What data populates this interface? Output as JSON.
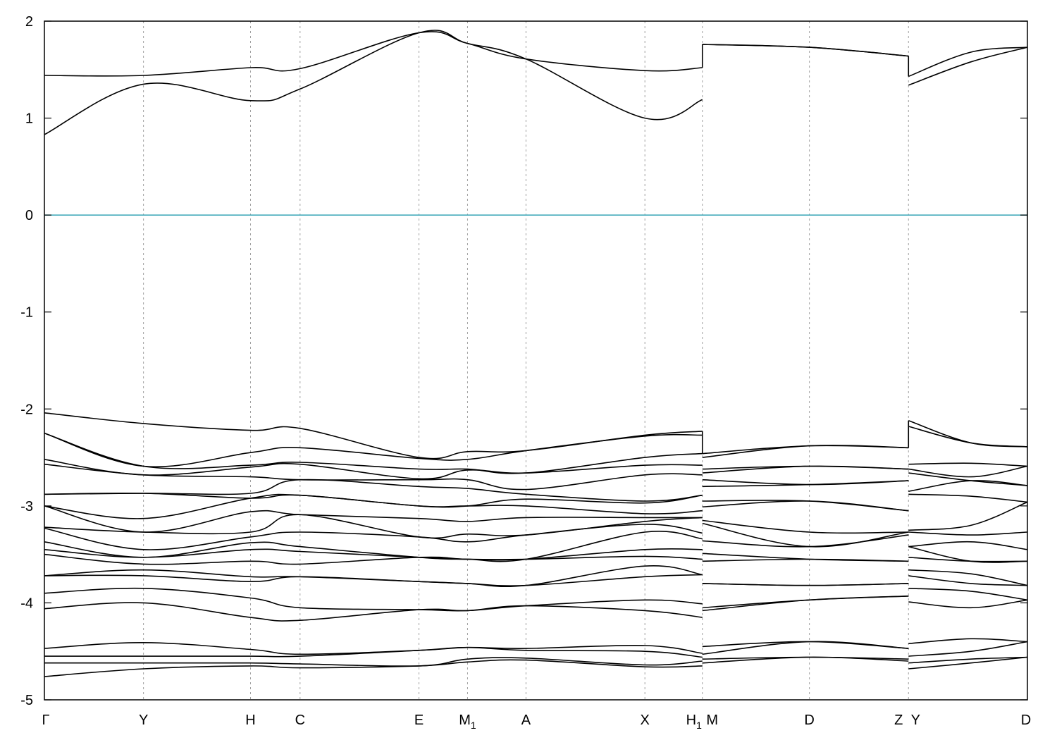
{
  "chart_data": {
    "type": "line",
    "title": "",
    "xlabel": "",
    "ylabel": "",
    "ylim": [
      -5,
      2
    ],
    "yticks": [
      -5,
      -4,
      -3,
      -2,
      -1,
      0,
      1,
      2
    ],
    "grid": "vertical dashed lines at high-symmetry points",
    "reference_line": {
      "y": 0,
      "color": "#44aabb"
    },
    "kpoints": [
      {
        "label": "Γ",
        "sub": "",
        "x": 0
      },
      {
        "label": "Y",
        "sub": "",
        "x": 1
      },
      {
        "label": "H",
        "sub": "",
        "x": 2.08
      },
      {
        "label": "C",
        "sub": "",
        "x": 2.58
      },
      {
        "label": "E",
        "sub": "",
        "x": 3.78
      },
      {
        "label": "M",
        "sub": "1",
        "x": 4.27
      },
      {
        "label": "A",
        "sub": "",
        "x": 4.86
      },
      {
        "label": "X",
        "sub": "",
        "x": 6.06
      },
      {
        "label": "H",
        "sub": "1",
        "x": 6.64
      },
      {
        "label": "M",
        "sub": "",
        "x": 6.64
      },
      {
        "label": "D",
        "sub": "",
        "x": 7.72
      },
      {
        "label": "Z",
        "sub": "",
        "x": 8.72
      },
      {
        "label": "Y",
        "sub": "",
        "x": 8.72
      },
      {
        "label": "D",
        "sub": "",
        "x": 9.92
      }
    ],
    "segments": [
      {
        "x": [
          0,
          1,
          2.08,
          2.58,
          3.78,
          4.27,
          4.86,
          6.06,
          6.64
        ],
        "bands": [
          [
            0.83,
            1.35,
            1.18,
            1.3,
            1.88,
            1.77,
            1.61,
            1.0,
            1.19
          ],
          [
            1.44,
            1.44,
            1.52,
            1.51,
            1.88,
            1.77,
            1.61,
            1.49,
            1.52
          ],
          [
            -2.04,
            -2.15,
            -2.22,
            -2.2,
            -2.5,
            -2.44,
            -2.43,
            -2.27,
            -2.23
          ],
          [
            -2.25,
            -2.59,
            -2.45,
            -2.4,
            -2.51,
            -2.52,
            -2.43,
            -2.28,
            -2.27
          ],
          [
            -2.25,
            -2.59,
            -2.58,
            -2.55,
            -2.62,
            -2.62,
            -2.66,
            -2.5,
            -2.46
          ],
          [
            -2.52,
            -2.68,
            -2.6,
            -2.57,
            -2.72,
            -2.63,
            -2.66,
            -2.58,
            -2.58
          ],
          [
            -2.57,
            -2.68,
            -2.7,
            -2.73,
            -2.73,
            -2.73,
            -2.83,
            -2.68,
            -2.68
          ],
          [
            -2.88,
            -2.87,
            -2.87,
            -2.73,
            -2.8,
            -2.82,
            -2.88,
            -2.95,
            -2.89
          ],
          [
            -2.88,
            -2.87,
            -2.92,
            -2.89,
            -3.0,
            -3.0,
            -2.93,
            -2.97,
            -2.89
          ],
          [
            -3.0,
            -3.13,
            -2.92,
            -2.89,
            -3.0,
            -3.0,
            -3.0,
            -3.08,
            -3.05
          ],
          [
            -3.0,
            -3.27,
            -3.06,
            -3.09,
            -3.13,
            -3.16,
            -3.12,
            -3.12,
            -3.12
          ],
          [
            -3.22,
            -3.27,
            -3.27,
            -3.09,
            -3.32,
            -3.29,
            -3.3,
            -3.16,
            -3.12
          ],
          [
            -3.23,
            -3.45,
            -3.32,
            -3.27,
            -3.32,
            -3.37,
            -3.3,
            -3.19,
            -3.28
          ],
          [
            -3.37,
            -3.53,
            -3.38,
            -3.42,
            -3.53,
            -3.55,
            -3.55,
            -3.27,
            -3.34
          ],
          [
            -3.45,
            -3.53,
            -3.45,
            -3.47,
            -3.53,
            -3.55,
            -3.55,
            -3.45,
            -3.45
          ],
          [
            -3.5,
            -3.6,
            -3.57,
            -3.6,
            -3.53,
            -3.55,
            -3.55,
            -3.52,
            -3.55
          ],
          [
            -3.72,
            -3.66,
            -3.73,
            -3.73,
            -3.78,
            -3.8,
            -3.82,
            -3.62,
            -3.71
          ],
          [
            -3.72,
            -3.72,
            -3.78,
            -3.73,
            -3.78,
            -3.8,
            -3.82,
            -3.73,
            -3.71
          ],
          [
            -3.9,
            -3.85,
            -3.95,
            -4.05,
            -4.07,
            -4.08,
            -4.03,
            -3.97,
            -4.01
          ],
          [
            -4.06,
            -4.0,
            -4.15,
            -4.18,
            -4.07,
            -4.08,
            -4.03,
            -4.08,
            -4.15
          ],
          [
            -4.47,
            -4.41,
            -4.48,
            -4.53,
            -4.49,
            -4.46,
            -4.47,
            -4.44,
            -4.52
          ],
          [
            -4.55,
            -4.55,
            -4.55,
            -4.55,
            -4.49,
            -4.46,
            -4.49,
            -4.5,
            -4.56
          ],
          [
            -4.62,
            -4.62,
            -4.62,
            -4.63,
            -4.65,
            -4.58,
            -4.57,
            -4.64,
            -4.6
          ],
          [
            -4.76,
            -4.68,
            -4.65,
            -4.67,
            -4.65,
            -4.61,
            -4.59,
            -4.66,
            -4.65
          ]
        ]
      },
      {
        "x": [
          6.64,
          7.72,
          8.72
        ],
        "bands": [
          [
            1.76,
            1.73,
            1.64
          ],
          [
            1.76,
            1.73,
            1.64
          ],
          [
            -2.46,
            -2.38,
            -2.4
          ],
          [
            -2.5,
            -2.38,
            -2.4
          ],
          [
            -2.62,
            -2.59,
            -2.62
          ],
          [
            -2.66,
            -2.59,
            -2.62
          ],
          [
            -2.73,
            -2.78,
            -2.74
          ],
          [
            -2.8,
            -2.78,
            -2.74
          ],
          [
            -2.95,
            -2.95,
            -3.05
          ],
          [
            -3.01,
            -2.95,
            -3.05
          ],
          [
            -3.15,
            -3.27,
            -3.27
          ],
          [
            -3.18,
            -3.42,
            -3.27
          ],
          [
            -3.36,
            -3.42,
            -3.3
          ],
          [
            -3.49,
            -3.55,
            -3.57
          ],
          [
            -3.57,
            -3.55,
            -3.57
          ],
          [
            -3.8,
            -3.82,
            -3.8
          ],
          [
            -3.8,
            -3.82,
            -3.8
          ],
          [
            -4.05,
            -3.97,
            -3.93
          ],
          [
            -4.08,
            -3.97,
            -3.93
          ],
          [
            -4.45,
            -4.4,
            -4.47
          ],
          [
            -4.53,
            -4.4,
            -4.47
          ],
          [
            -4.58,
            -4.56,
            -4.58
          ],
          [
            -4.62,
            -4.56,
            -4.6
          ]
        ]
      },
      {
        "x": [
          8.72,
          9.35,
          9.92
        ],
        "bands": [
          [
            1.34,
            1.58,
            1.73
          ],
          [
            1.43,
            1.68,
            1.73
          ],
          [
            -2.12,
            -2.35,
            -2.39
          ],
          [
            -2.18,
            -2.35,
            -2.39
          ],
          [
            -2.57,
            -2.56,
            -2.59
          ],
          [
            -2.62,
            -2.7,
            -2.59
          ],
          [
            -2.66,
            -2.74,
            -2.79
          ],
          [
            -2.85,
            -2.74,
            -2.79
          ],
          [
            -2.88,
            -2.9,
            -2.96
          ],
          [
            -3.25,
            -3.2,
            -2.96
          ],
          [
            -3.27,
            -3.3,
            -3.27
          ],
          [
            -3.42,
            -3.37,
            -3.45
          ],
          [
            -3.42,
            -3.57,
            -3.57
          ],
          [
            -3.53,
            -3.57,
            -3.57
          ],
          [
            -3.66,
            -3.7,
            -3.82
          ],
          [
            -3.72,
            -3.8,
            -3.82
          ],
          [
            -3.85,
            -3.88,
            -3.97
          ],
          [
            -3.99,
            -4.05,
            -3.97
          ],
          [
            -4.42,
            -4.37,
            -4.4
          ],
          [
            -4.55,
            -4.5,
            -4.4
          ],
          [
            -4.62,
            -4.58,
            -4.56
          ],
          [
            -4.68,
            -4.62,
            -4.56
          ]
        ]
      }
    ]
  }
}
